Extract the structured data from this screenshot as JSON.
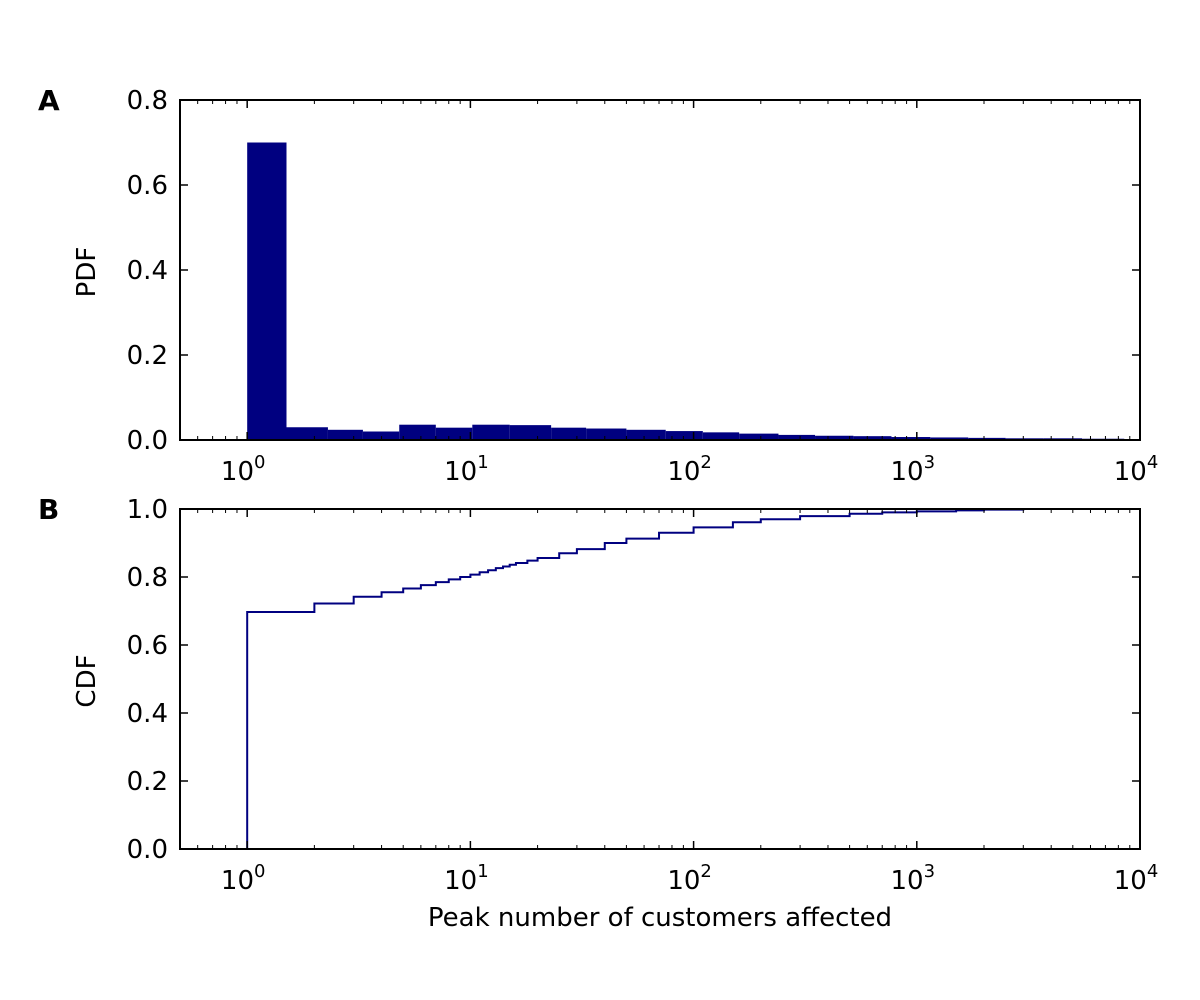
{
  "colors": {
    "series": "#000080",
    "axis": "#000000",
    "background": "#ffffff"
  },
  "chart_data": [
    {
      "panel": "A",
      "type": "bar",
      "ylabel": "PDF",
      "xlabel": "",
      "xscale": "log",
      "xlim": [
        0.5,
        10000
      ],
      "ylim": [
        0,
        0.8
      ],
      "yticks": [
        "0.0",
        "0.2",
        "0.4",
        "0.6",
        "0.8"
      ],
      "xticks": [
        {
          "base": "10",
          "exp": "0"
        },
        {
          "base": "10",
          "exp": "1"
        },
        {
          "base": "10",
          "exp": "2"
        },
        {
          "base": "10",
          "exp": "3"
        },
        {
          "base": "10",
          "exp": "4"
        }
      ],
      "bins": [
        {
          "x0": 1.0,
          "x1": 1.5,
          "value": 0.7
        },
        {
          "x0": 1.5,
          "x1": 2.3,
          "value": 0.03
        },
        {
          "x0": 2.3,
          "x1": 3.3,
          "value": 0.024
        },
        {
          "x0": 3.3,
          "x1": 4.8,
          "value": 0.02
        },
        {
          "x0": 4.8,
          "x1": 7.0,
          "value": 0.036
        },
        {
          "x0": 7.0,
          "x1": 10.2,
          "value": 0.029
        },
        {
          "x0": 10.2,
          "x1": 15.0,
          "value": 0.036
        },
        {
          "x0": 15.0,
          "x1": 23.0,
          "value": 0.035
        },
        {
          "x0": 23.0,
          "x1": 33.0,
          "value": 0.029
        },
        {
          "x0": 33.0,
          "x1": 50.0,
          "value": 0.027
        },
        {
          "x0": 50.0,
          "x1": 75.0,
          "value": 0.024
        },
        {
          "x0": 75.0,
          "x1": 110.0,
          "value": 0.021
        },
        {
          "x0": 110.0,
          "x1": 160.0,
          "value": 0.018
        },
        {
          "x0": 160.0,
          "x1": 240.0,
          "value": 0.015
        },
        {
          "x0": 240.0,
          "x1": 350.0,
          "value": 0.012
        },
        {
          "x0": 350.0,
          "x1": 520.0,
          "value": 0.01
        },
        {
          "x0": 520.0,
          "x1": 770.0,
          "value": 0.009
        },
        {
          "x0": 770.0,
          "x1": 1150.0,
          "value": 0.007
        },
        {
          "x0": 1150.0,
          "x1": 1700.0,
          "value": 0.006
        },
        {
          "x0": 1700.0,
          "x1": 2500.0,
          "value": 0.005
        },
        {
          "x0": 2500.0,
          "x1": 3700.0,
          "value": 0.004
        },
        {
          "x0": 3700.0,
          "x1": 5500.0,
          "value": 0.004
        },
        {
          "x0": 5500.0,
          "x1": 8500.0,
          "value": 0.003
        }
      ]
    },
    {
      "panel": "B",
      "type": "line",
      "drawstyle": "steps-post",
      "ylabel": "CDF",
      "xlabel": "Peak number of customers affected",
      "xscale": "log",
      "xlim": [
        0.5,
        10000
      ],
      "ylim": [
        0,
        1.0
      ],
      "yticks": [
        "0.0",
        "0.2",
        "0.4",
        "0.6",
        "0.8",
        "1.0"
      ],
      "xticks": [
        {
          "base": "10",
          "exp": "0"
        },
        {
          "base": "10",
          "exp": "1"
        },
        {
          "base": "10",
          "exp": "2"
        },
        {
          "base": "10",
          "exp": "3"
        },
        {
          "base": "10",
          "exp": "4"
        }
      ],
      "x": [
        1,
        2,
        3,
        4,
        5,
        6,
        7,
        8,
        9,
        10,
        11,
        12,
        13,
        14,
        15,
        16,
        18,
        20,
        25,
        30,
        40,
        50,
        70,
        100,
        150,
        200,
        300,
        500,
        700,
        1000,
        1500,
        2000,
        3000
      ],
      "y": [
        0.697,
        0.722,
        0.742,
        0.755,
        0.766,
        0.776,
        0.785,
        0.793,
        0.8,
        0.807,
        0.814,
        0.82,
        0.826,
        0.831,
        0.836,
        0.841,
        0.848,
        0.856,
        0.87,
        0.882,
        0.9,
        0.913,
        0.93,
        0.946,
        0.961,
        0.97,
        0.979,
        0.986,
        0.99,
        0.993,
        0.996,
        0.998,
        1.0
      ]
    }
  ]
}
